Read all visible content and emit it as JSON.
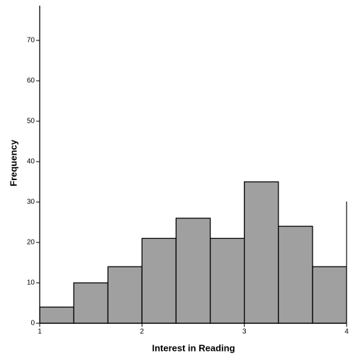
{
  "chart_data": {
    "type": "histogram",
    "x_label": "Interest in Reading",
    "y_label": "Frequency",
    "bins": [
      1,
      1.333,
      1.667,
      2,
      2.333,
      2.667,
      3,
      3.333,
      3.667,
      4,
      4.333
    ],
    "values": [
      4,
      10,
      14,
      21,
      26,
      21,
      35,
      24,
      14,
      30
    ],
    "color": "#a0a0a0",
    "xlim": [
      1,
      4
    ],
    "xticks": [
      1,
      2,
      3,
      4
    ],
    "ylim": [
      0,
      78.6
    ],
    "yticks": [
      0,
      10,
      20,
      30,
      40,
      50,
      60,
      70
    ]
  }
}
